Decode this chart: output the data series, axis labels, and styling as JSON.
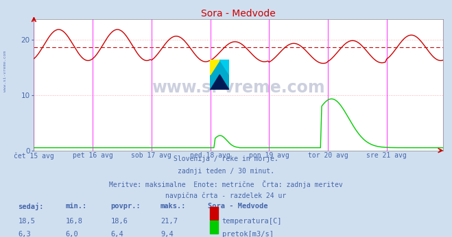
{
  "title": "Sora - Medvode",
  "bg_color": "#d0dff0",
  "plot_bg_color": "#ffffff",
  "grid_color": "#ffaaaa",
  "xlabel_color": "#4466aa",
  "text_color": "#4466aa",
  "subtitle_lines": [
    "Slovenija / reke in morje.",
    "zadnji teden / 30 minut.",
    "Meritve: maksimalne  Enote: metrične  Črta: zadnja meritev",
    "navpična črta - razdelek 24 ur"
  ],
  "x_tick_labels": [
    "čet 15 avg",
    "pet 16 avg",
    "sob 17 avg",
    "ned 18 avg",
    "pon 19 avg",
    "tor 20 avg",
    "sre 21 avg"
  ],
  "x_tick_positions": [
    0,
    48,
    96,
    144,
    192,
    240,
    288
  ],
  "vline_positions": [
    48,
    96,
    144,
    192,
    240,
    288
  ],
  "ylim": [
    0,
    23.7
  ],
  "xlim": [
    0,
    334
  ],
  "y_ticks": [
    0,
    10,
    20
  ],
  "avg_line_y": 18.6,
  "avg_line_color": "#cc0000",
  "temp_color": "#cc0000",
  "flow_color": "#00cc00",
  "vline_color": "#ff44ff",
  "table_headers": [
    "sedaj:",
    "min.:",
    "povpr.:",
    "maks.:",
    "Sora - Medvode"
  ],
  "table_temp": [
    "18,5",
    "16,8",
    "18,6",
    "21,7"
  ],
  "table_flow": [
    "6,3",
    "6,0",
    "6,4",
    "9,4"
  ],
  "legend_temp_label": "temperatura[C]",
  "legend_flow_label": "pretok[m3/s]",
  "n_points": 336
}
